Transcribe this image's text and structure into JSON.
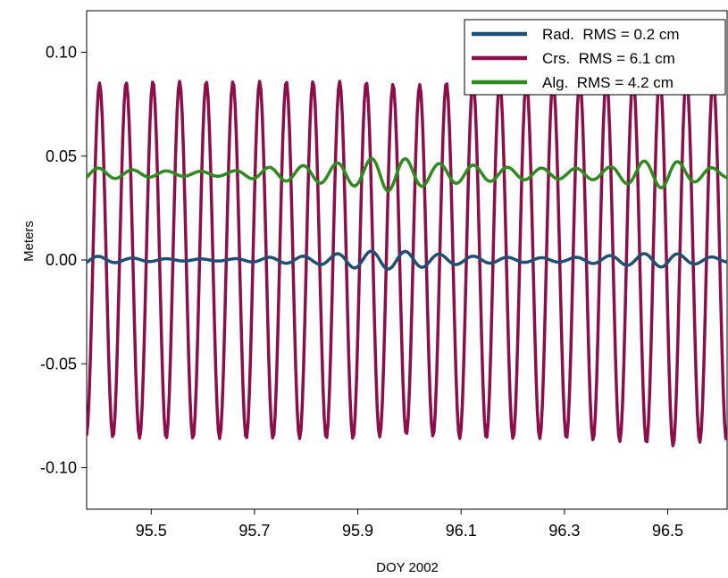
{
  "chart_data": {
    "type": "line",
    "title": "",
    "xlabel": "DOY 2002",
    "ylabel": "Meters",
    "xlim": [
      95.375,
      96.615
    ],
    "ylim": [
      -0.12,
      0.12
    ],
    "x_ticks": [
      95.5,
      95.7,
      95.9,
      96.1,
      96.3,
      96.5
    ],
    "x_tick_labels": [
      "95.5",
      "95.7",
      "95.9",
      "96.1",
      "96.3",
      "96.5"
    ],
    "y_ticks": [
      0.1,
      0.05,
      0.0,
      -0.05,
      -0.1
    ],
    "y_tick_labels": [
      "0.10",
      "0.05",
      "0.00",
      "-0.05",
      "-0.10"
    ],
    "grid": false,
    "legend_position": "top-right",
    "sampling": {
      "x_start": 95.375,
      "x_end": 96.615,
      "step": 0.0025
    },
    "series": [
      {
        "name": "Rad.  RMS = 0.2 cm",
        "color": "#1f4e79",
        "baseline": 0.0,
        "period": 0.066,
        "phase": 95.398,
        "envelope": [
          [
            95.38,
            0.002
          ],
          [
            95.45,
            0.001
          ],
          [
            95.55,
            0.0005
          ],
          [
            95.65,
            0.0005
          ],
          [
            95.75,
            0.0015
          ],
          [
            95.82,
            0.002
          ],
          [
            95.9,
            0.004
          ],
          [
            95.95,
            0.0045
          ],
          [
            96.0,
            0.004
          ],
          [
            96.05,
            0.003
          ],
          [
            96.1,
            0.002
          ],
          [
            96.2,
            0.0012
          ],
          [
            96.3,
            0.001
          ],
          [
            96.38,
            0.002
          ],
          [
            96.45,
            0.003
          ],
          [
            96.5,
            0.0035
          ],
          [
            96.55,
            0.002
          ],
          [
            96.615,
            0.001
          ]
        ]
      },
      {
        "name": "Crs.  RMS = 6.1 cm",
        "color": "#8b0f4a",
        "baseline": 0.0,
        "period": 0.05165,
        "phase": 95.4,
        "envelope": [
          [
            95.38,
            0.085
          ],
          [
            95.5,
            0.086
          ],
          [
            95.7,
            0.086
          ],
          [
            95.9,
            0.086
          ],
          [
            95.95,
            0.085
          ],
          [
            96.0,
            0.084
          ],
          [
            96.1,
            0.086
          ],
          [
            96.3,
            0.086
          ],
          [
            96.45,
            0.088
          ],
          [
            96.5,
            0.09
          ],
          [
            96.55,
            0.088
          ],
          [
            96.615,
            0.087
          ]
        ]
      },
      {
        "name": "Alg.  RMS = 4.2 cm",
        "color": "#2e8b1f",
        "baseline": 0.0415,
        "period": 0.066,
        "phase": 95.398,
        "envelope": [
          [
            95.38,
            0.003
          ],
          [
            95.45,
            0.002
          ],
          [
            95.55,
            0.0012
          ],
          [
            95.65,
            0.0012
          ],
          [
            95.72,
            0.003
          ],
          [
            95.8,
            0.004
          ],
          [
            95.9,
            0.006
          ],
          [
            95.95,
            0.0085
          ],
          [
            96.0,
            0.007
          ],
          [
            96.05,
            0.005
          ],
          [
            96.1,
            0.0045
          ],
          [
            96.2,
            0.003
          ],
          [
            96.3,
            0.0025
          ],
          [
            96.38,
            0.003
          ],
          [
            96.45,
            0.006
          ],
          [
            96.5,
            0.007
          ],
          [
            96.55,
            0.004
          ],
          [
            96.615,
            0.002
          ]
        ]
      }
    ]
  }
}
